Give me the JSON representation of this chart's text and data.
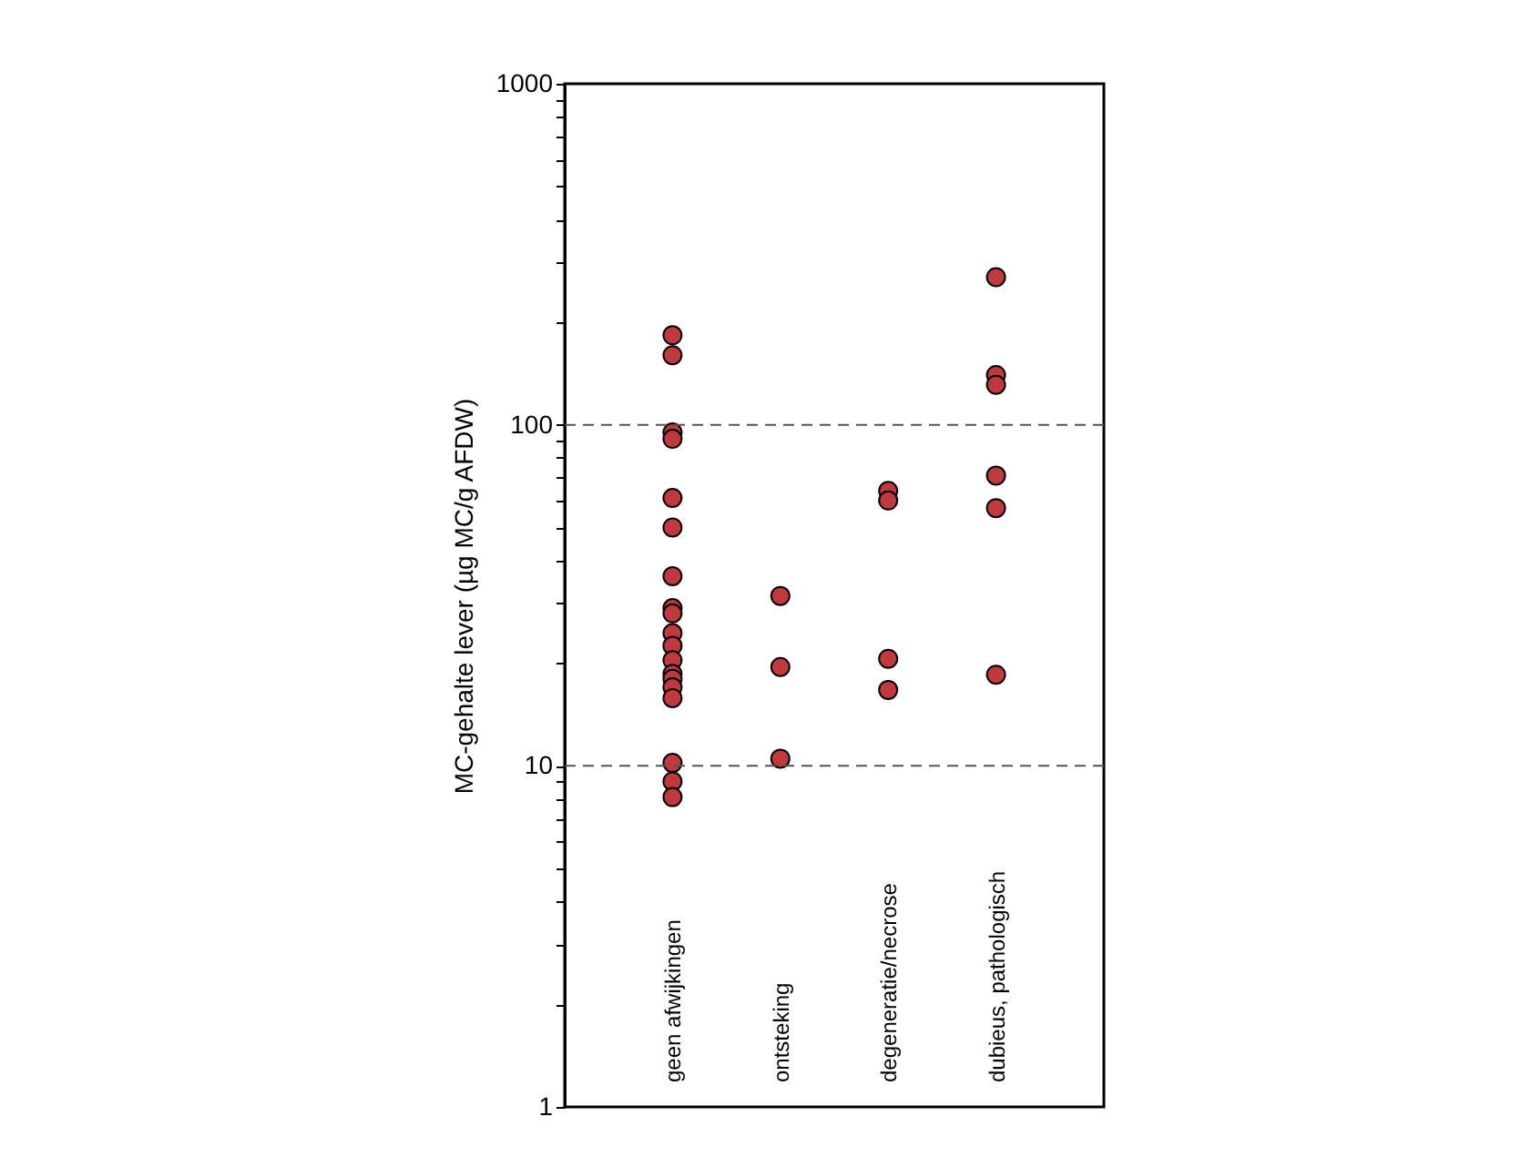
{
  "chart_data": {
    "type": "scatter",
    "ylabel": "MC-gehalte lever (µg MC/g AFDW)",
    "categories": [
      "geen afwijkingen",
      "ontsteking",
      "degeneratie/necrose",
      "dubieus, pathologisch"
    ],
    "series": [
      {
        "color": "#c0393f",
        "x": [
          "geen afwijkingen",
          "geen afwijkingen",
          "geen afwijkingen",
          "geen afwijkingen",
          "geen afwijkingen",
          "geen afwijkingen",
          "geen afwijkingen",
          "geen afwijkingen",
          "geen afwijkingen",
          "geen afwijkingen",
          "geen afwijkingen",
          "geen afwijkingen",
          "geen afwijkingen",
          "geen afwijkingen",
          "geen afwijkingen",
          "geen afwijkingen",
          "geen afwijkingen",
          "geen afwijkingen",
          "geen afwijkingen",
          "ontsteking",
          "ontsteking",
          "ontsteking",
          "degeneratie/necrose",
          "degeneratie/necrose",
          "degeneratie/necrose",
          "degeneratie/necrose",
          "dubieus, pathologisch",
          "dubieus, pathologisch",
          "dubieus, pathologisch",
          "dubieus, pathologisch",
          "dubieus, pathologisch",
          "dubieus, pathologisch"
        ],
        "values": [
          183,
          160,
          95,
          91,
          61,
          50,
          36,
          29,
          28,
          24.5,
          22.5,
          20.4,
          18.6,
          18,
          17,
          15.8,
          10.2,
          9,
          8.1,
          31.5,
          19.5,
          10.5,
          64,
          60,
          20.6,
          16.7,
          271,
          140,
          131,
          71,
          57,
          18.5
        ]
      }
    ],
    "log": true,
    "ylim": [
      1,
      1000
    ],
    "yticks": [
      1,
      {
        "value": 2,
        "label": null
      },
      {
        "value": 3,
        "label": null
      },
      {
        "value": 4,
        "label": null
      },
      {
        "value": 5,
        "label": null
      },
      {
        "value": 6,
        "label": null
      },
      {
        "value": 7,
        "label": null
      },
      {
        "value": 8,
        "label": null
      },
      {
        "value": 9,
        "label": null
      },
      10,
      {
        "value": 20,
        "label": null
      },
      {
        "value": 30,
        "label": null
      },
      {
        "value": 40,
        "label": null
      },
      {
        "value": 50,
        "label": null
      },
      {
        "value": 60,
        "label": null
      },
      {
        "value": 70,
        "label": null
      },
      {
        "value": 80,
        "label": null
      },
      {
        "value": 90,
        "label": null
      },
      100,
      {
        "value": 200,
        "label": null
      },
      {
        "value": 300,
        "label": null
      },
      {
        "value": 400,
        "label": null
      },
      {
        "value": 500,
        "label": null
      },
      {
        "value": 600,
        "label": null
      },
      {
        "value": 700,
        "label": null
      },
      {
        "value": 800,
        "label": null
      },
      {
        "value": 900,
        "label": null
      },
      1000
    ],
    "ref_lines": [
      {
        "axis": "y",
        "value": 100,
        "line_style": "dashed",
        "color": "#555555"
      },
      {
        "axis": "y",
        "value": 10,
        "line_style": "dashed",
        "color": "#555555"
      }
    ],
    "marker": "circle",
    "grid": false
  }
}
